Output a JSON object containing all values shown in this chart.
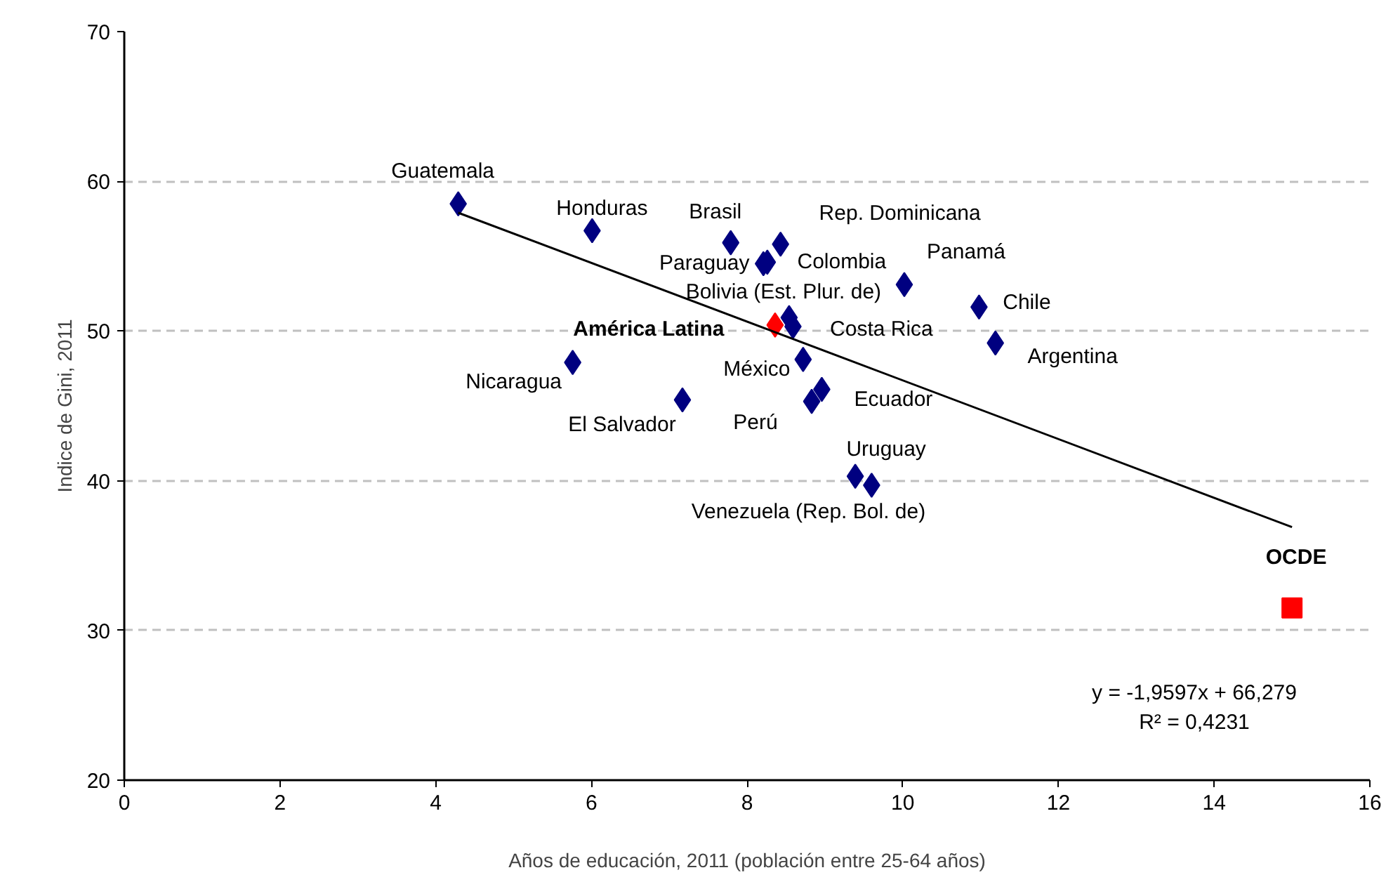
{
  "chart_data": {
    "type": "scatter",
    "xlabel": "Años de educación, 2011 (población entre 25-64 años)",
    "ylabel": "Indice de Gini, 2011",
    "xlim": [
      0,
      16
    ],
    "xticks": [
      0,
      2,
      4,
      6,
      8,
      10,
      12,
      14,
      16
    ],
    "ylim": [
      20,
      70
    ],
    "yticks": [
      20,
      30,
      40,
      50,
      60,
      70
    ],
    "grid": "y",
    "legend": false,
    "series": [
      {
        "color": "#000080",
        "marker": "diamond",
        "x": [
          4.29,
          6.01,
          7.79,
          8.43,
          8.21,
          8.26,
          10.02,
          10.98,
          11.19,
          8.54,
          8.59,
          8.72,
          5.76,
          7.17,
          8.96,
          8.83,
          9.39,
          9.6
        ],
        "values": [
          58.5,
          56.7,
          55.9,
          55.8,
          54.5,
          54.6,
          53.1,
          51.6,
          49.2,
          50.9,
          50.3,
          48.1,
          47.9,
          45.4,
          46.1,
          45.3,
          40.3,
          39.7
        ]
      },
      {
        "name": "América Latina",
        "color": "#ff0000",
        "marker": "diamond",
        "x": [
          8.36
        ],
        "values": [
          50.4
        ]
      },
      {
        "name": "OCDE",
        "color": "#ff0000",
        "marker": "square",
        "x": [
          15.0
        ],
        "values": [
          31.5
        ]
      },
      {
        "type": "line",
        "color": "#000000",
        "marker": "none",
        "line_style": "solid",
        "x": [
          4.29,
          15.0
        ],
        "values": [
          57.9,
          36.9
        ]
      }
    ],
    "annotations": [
      {
        "text": "Guatemala",
        "x": 4.29,
        "y": 58.5
      },
      {
        "text": "Honduras",
        "x": 6.01,
        "y": 56.7
      },
      {
        "text": "Brasil",
        "x": 7.79,
        "y": 55.9
      },
      {
        "text": "Rep. Dominicana",
        "x": 8.43,
        "y": 55.8
      },
      {
        "text": "Paraguay",
        "x": 8.21,
        "y": 54.5
      },
      {
        "text": "Colombia",
        "x": 8.26,
        "y": 54.6
      },
      {
        "text": "Panamá",
        "x": 10.02,
        "y": 53.1
      },
      {
        "text": "Chile",
        "x": 10.98,
        "y": 51.6
      },
      {
        "text": "Argentina",
        "x": 11.19,
        "y": 49.2
      },
      {
        "text": "Bolivia (Est. Plur. de)",
        "x": 8.54,
        "y": 50.9
      },
      {
        "text": "Costa Rica",
        "x": 8.59,
        "y": 50.3
      },
      {
        "text": "México",
        "x": 8.72,
        "y": 48.1
      },
      {
        "text": "Nicaragua",
        "x": 5.76,
        "y": 47.9
      },
      {
        "text": "El Salvador",
        "x": 7.17,
        "y": 45.4
      },
      {
        "text": "Ecuador",
        "x": 8.96,
        "y": 46.1
      },
      {
        "text": "Perú",
        "x": 8.83,
        "y": 45.3
      },
      {
        "text": "Uruguay",
        "x": 9.39,
        "y": 40.3
      },
      {
        "text": "Venezuela (Rep. Bol. de)",
        "x": 9.6,
        "y": 39.7
      },
      "y = -1,9597x + 66,279",
      "R² = 0,4231"
    ]
  }
}
